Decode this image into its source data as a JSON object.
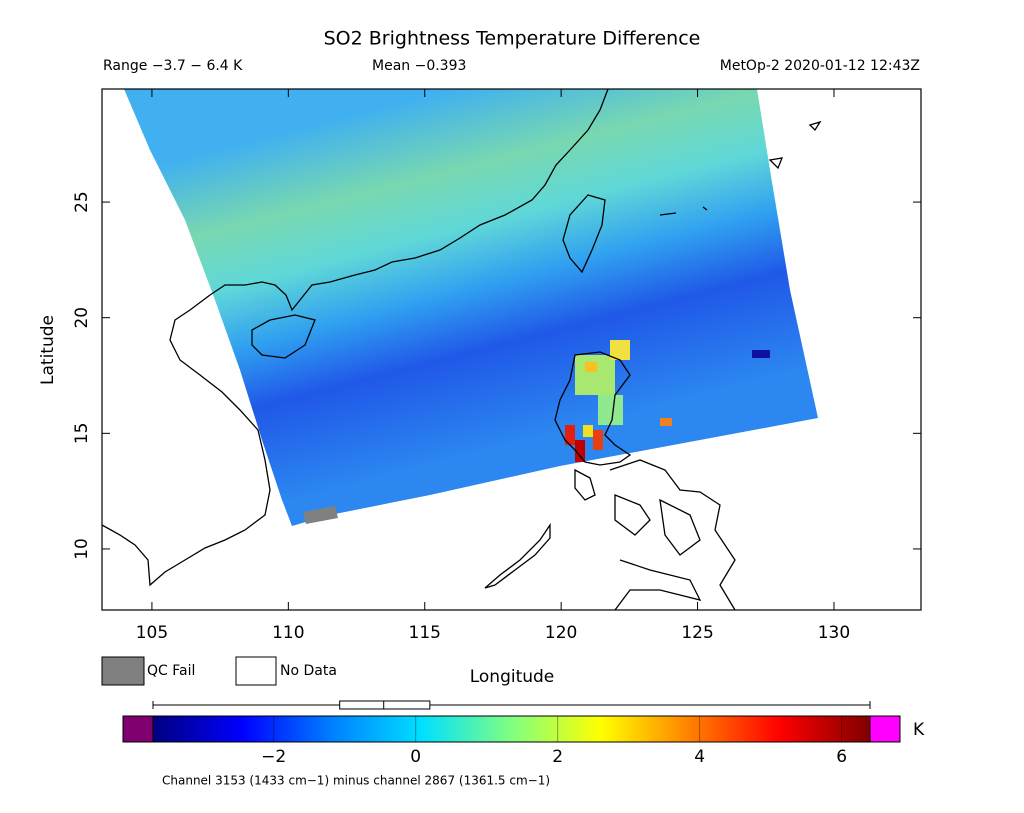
{
  "title": "SO2 Brightness Temperature Difference",
  "range_label": "Range −3.7 − 6.4 K",
  "mean_label": "Mean −0.393",
  "satellite_time": "MetOp-2 2020-01-12 12:43Z",
  "x_axis": {
    "label": "Longitude",
    "lim": [
      103.17,
      133.19
    ],
    "ticks": [
      105,
      110,
      115,
      120,
      125,
      130
    ]
  },
  "y_axis": {
    "label": "Latitude",
    "lim": [
      7.36,
      29.89
    ],
    "ticks": [
      10,
      15,
      20,
      25
    ]
  },
  "legend": [
    {
      "label": "QC Fail",
      "color": "#808080"
    },
    {
      "label": "No Data",
      "color": "#ffffff"
    }
  ],
  "colorbar": {
    "lim": [
      -3.7,
      6.4
    ],
    "ticks": [
      {
        "value": -2,
        "label": "−2"
      },
      0,
      2,
      4,
      6
    ],
    "unit": "K",
    "colormap": [
      "#00007f",
      "#0000ff",
      "#0080ff",
      "#00e0ff",
      "#80ff80",
      "#ffff00",
      "#ff8000",
      "#ff0000",
      "#800000"
    ],
    "under_color": "#800070",
    "over_color": "#ff00ff",
    "distribution": {
      "min": -3.7,
      "q1": -1.07,
      "median": -0.45,
      "q3": 0.2,
      "max": 6.4
    }
  },
  "footnote": "Channel 3153 (1433 cm−1) minus channel 2867 (1361.5 cm−1)"
}
